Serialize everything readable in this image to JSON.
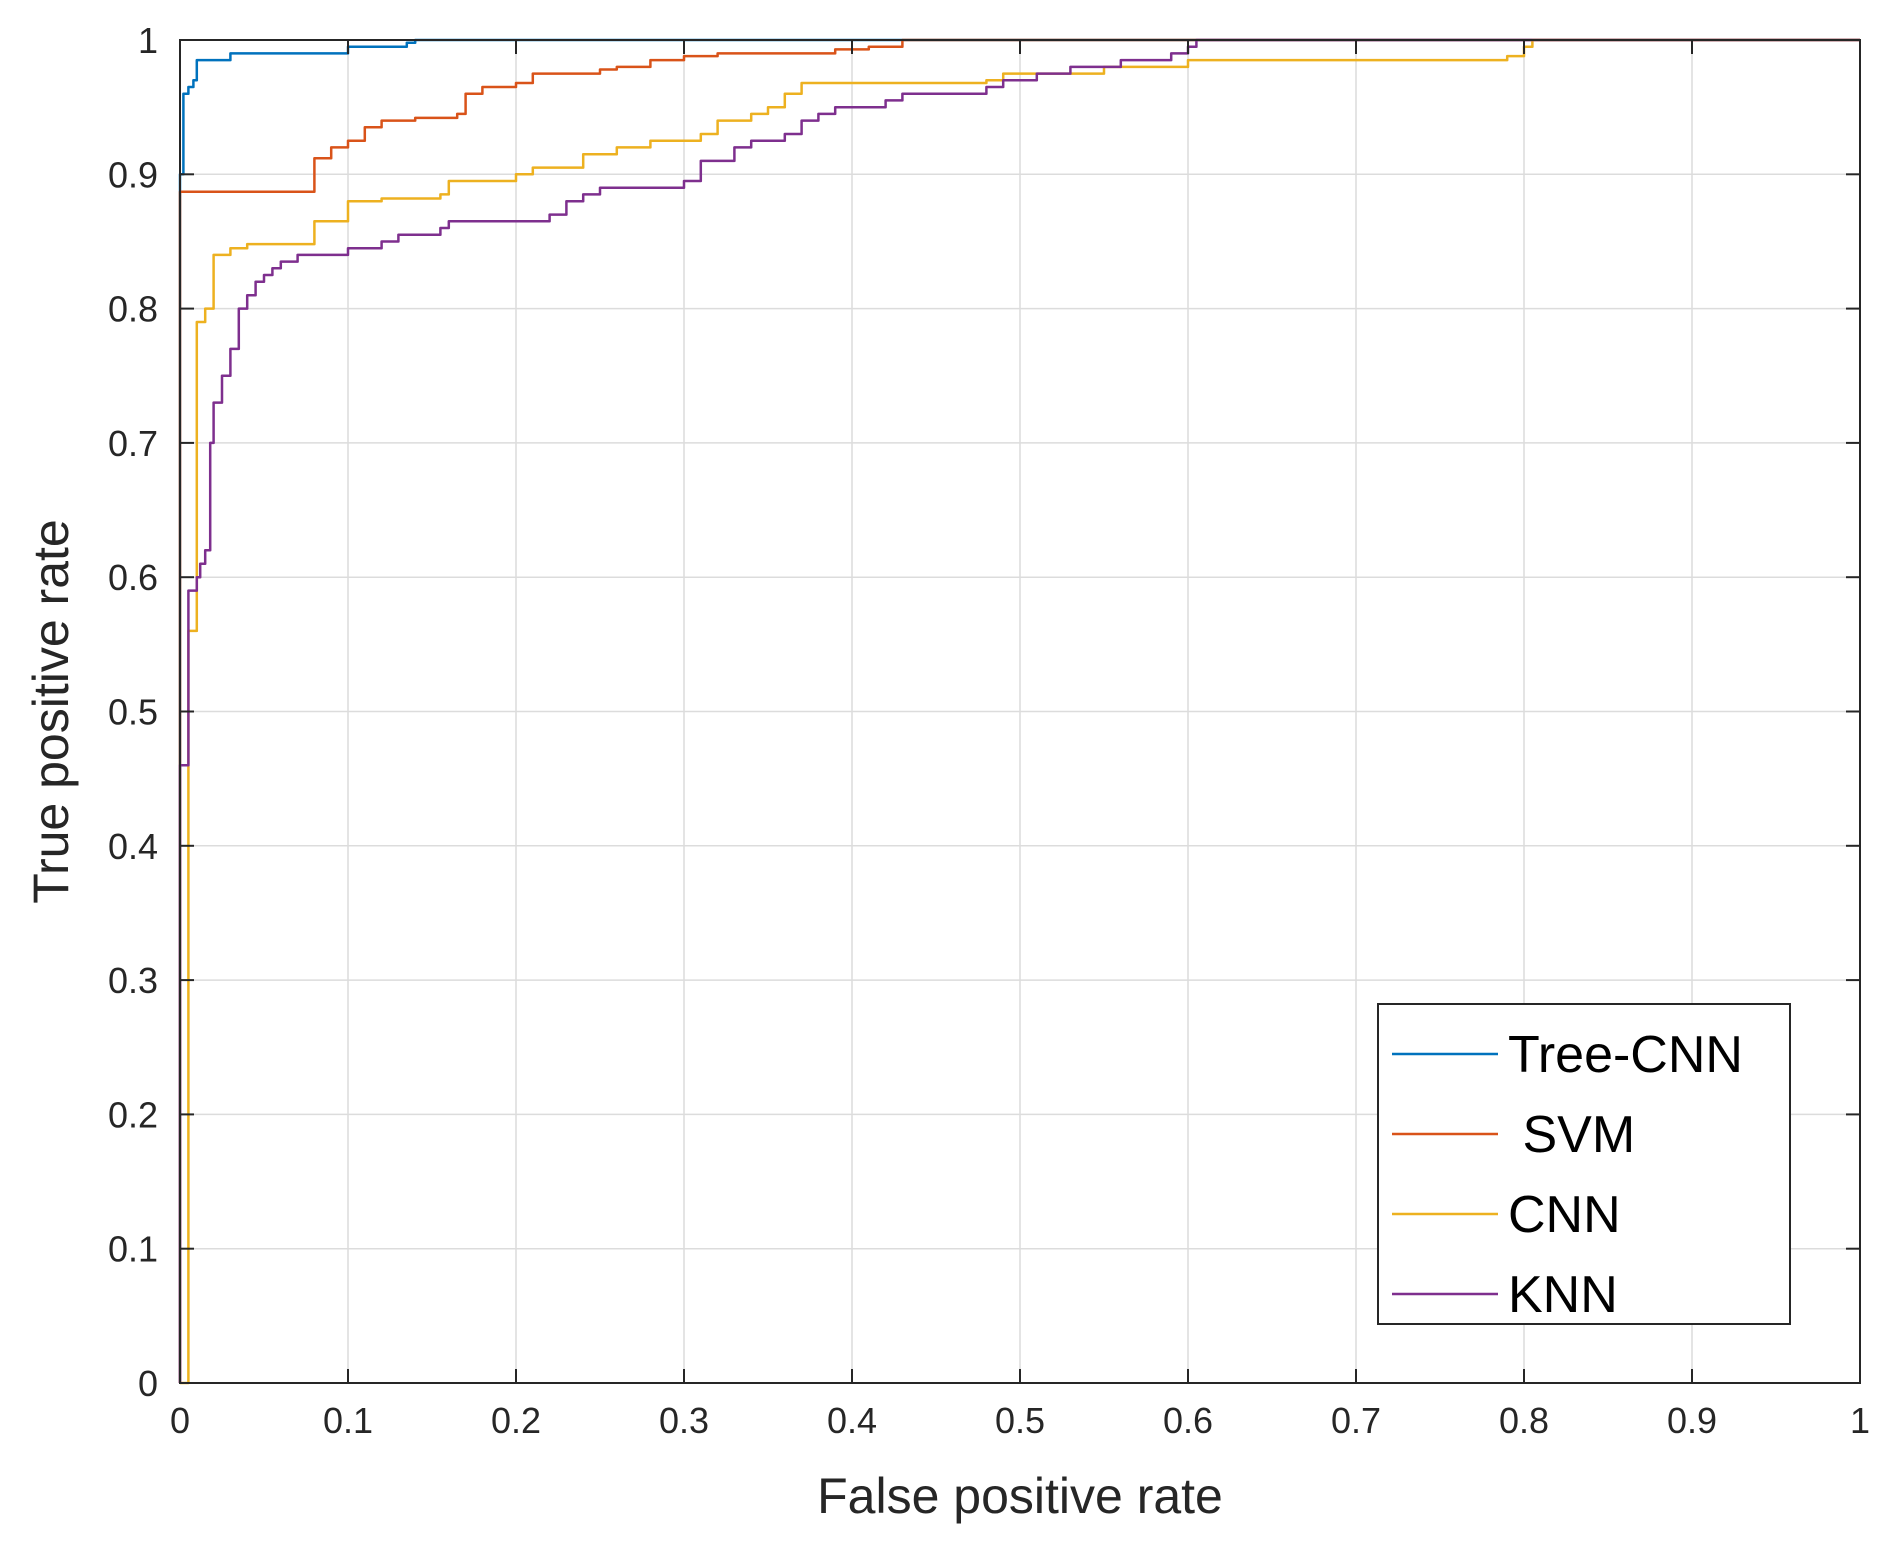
{
  "chart_data": {
    "type": "line",
    "title": "",
    "xlabel": "False positive rate",
    "ylabel": "True positive rate",
    "xlim": [
      0,
      1
    ],
    "ylim": [
      0,
      1
    ],
    "grid": true,
    "legend_position": "bottom-right",
    "x_tick_labels": [
      "0",
      "0.1",
      "0.2",
      "0.3",
      "0.4",
      "0.5",
      "0.6",
      "0.7",
      "0.8",
      "0.9",
      "1"
    ],
    "y_tick_labels": [
      "0",
      "0.1",
      "0.2",
      "0.3",
      "0.4",
      "0.5",
      "0.6",
      "0.7",
      "0.8",
      "0.9",
      "1"
    ],
    "series": [
      {
        "name": "Tree-CNN",
        "color": "#0072bd",
        "points": [
          [
            0,
            0
          ],
          [
            0,
            0.9
          ],
          [
            0.002,
            0.96
          ],
          [
            0.005,
            0.965
          ],
          [
            0.008,
            0.97
          ],
          [
            0.01,
            0.975
          ],
          [
            0.01,
            0.985
          ],
          [
            0.02,
            0.985
          ],
          [
            0.03,
            0.99
          ],
          [
            0.1,
            0.995
          ],
          [
            0.135,
            0.998
          ],
          [
            0.14,
            1
          ],
          [
            1,
            1
          ]
        ]
      },
      {
        "name": " SVM",
        "color": "#d95319",
        "points": [
          [
            0,
            0
          ],
          [
            0,
            0.887
          ],
          [
            0.08,
            0.912
          ],
          [
            0.09,
            0.92
          ],
          [
            0.1,
            0.925
          ],
          [
            0.11,
            0.935
          ],
          [
            0.12,
            0.94
          ],
          [
            0.14,
            0.942
          ],
          [
            0.165,
            0.945
          ],
          [
            0.17,
            0.96
          ],
          [
            0.18,
            0.965
          ],
          [
            0.2,
            0.968
          ],
          [
            0.21,
            0.975
          ],
          [
            0.25,
            0.978
          ],
          [
            0.26,
            0.98
          ],
          [
            0.28,
            0.985
          ],
          [
            0.3,
            0.988
          ],
          [
            0.32,
            0.99
          ],
          [
            0.39,
            0.993
          ],
          [
            0.41,
            0.995
          ],
          [
            0.43,
            1
          ],
          [
            1,
            1
          ]
        ]
      },
      {
        "name": "CNN",
        "color": "#edb120",
        "points": [
          [
            0,
            0
          ],
          [
            0.005,
            0.56
          ],
          [
            0.01,
            0.58
          ],
          [
            0.01,
            0.79
          ],
          [
            0.015,
            0.8
          ],
          [
            0.02,
            0.81
          ],
          [
            0.02,
            0.84
          ],
          [
            0.03,
            0.845
          ],
          [
            0.04,
            0.848
          ],
          [
            0.08,
            0.85
          ],
          [
            0.08,
            0.865
          ],
          [
            0.1,
            0.87
          ],
          [
            0.1,
            0.88
          ],
          [
            0.12,
            0.882
          ],
          [
            0.155,
            0.885
          ],
          [
            0.16,
            0.895
          ],
          [
            0.2,
            0.9
          ],
          [
            0.21,
            0.905
          ],
          [
            0.24,
            0.915
          ],
          [
            0.26,
            0.92
          ],
          [
            0.28,
            0.925
          ],
          [
            0.31,
            0.93
          ],
          [
            0.32,
            0.94
          ],
          [
            0.34,
            0.945
          ],
          [
            0.35,
            0.95
          ],
          [
            0.36,
            0.96
          ],
          [
            0.37,
            0.968
          ],
          [
            0.48,
            0.97
          ],
          [
            0.49,
            0.975
          ],
          [
            0.55,
            0.98
          ],
          [
            0.6,
            0.985
          ],
          [
            0.79,
            0.988
          ],
          [
            0.8,
            0.995
          ],
          [
            0.805,
            1
          ],
          [
            1,
            1
          ]
        ]
      },
      {
        "name": "KNN",
        "color": "#7e2f8e",
        "points": [
          [
            0,
            0
          ],
          [
            0,
            0.46
          ],
          [
            0.005,
            0.48
          ],
          [
            0.005,
            0.59
          ],
          [
            0.01,
            0.6
          ],
          [
            0.012,
            0.61
          ],
          [
            0.015,
            0.62
          ],
          [
            0.018,
            0.7
          ],
          [
            0.02,
            0.73
          ],
          [
            0.025,
            0.75
          ],
          [
            0.03,
            0.77
          ],
          [
            0.035,
            0.8
          ],
          [
            0.04,
            0.81
          ],
          [
            0.045,
            0.82
          ],
          [
            0.05,
            0.825
          ],
          [
            0.055,
            0.83
          ],
          [
            0.06,
            0.835
          ],
          [
            0.07,
            0.84
          ],
          [
            0.1,
            0.845
          ],
          [
            0.12,
            0.85
          ],
          [
            0.13,
            0.855
          ],
          [
            0.155,
            0.86
          ],
          [
            0.16,
            0.865
          ],
          [
            0.22,
            0.87
          ],
          [
            0.23,
            0.88
          ],
          [
            0.24,
            0.885
          ],
          [
            0.25,
            0.89
          ],
          [
            0.3,
            0.895
          ],
          [
            0.31,
            0.91
          ],
          [
            0.33,
            0.92
          ],
          [
            0.34,
            0.925
          ],
          [
            0.36,
            0.93
          ],
          [
            0.37,
            0.94
          ],
          [
            0.38,
            0.945
          ],
          [
            0.39,
            0.95
          ],
          [
            0.42,
            0.955
          ],
          [
            0.43,
            0.96
          ],
          [
            0.48,
            0.965
          ],
          [
            0.49,
            0.97
          ],
          [
            0.51,
            0.975
          ],
          [
            0.53,
            0.98
          ],
          [
            0.56,
            0.985
          ],
          [
            0.59,
            0.99
          ],
          [
            0.6,
            0.995
          ],
          [
            0.605,
            1
          ],
          [
            1,
            1
          ]
        ]
      }
    ]
  }
}
